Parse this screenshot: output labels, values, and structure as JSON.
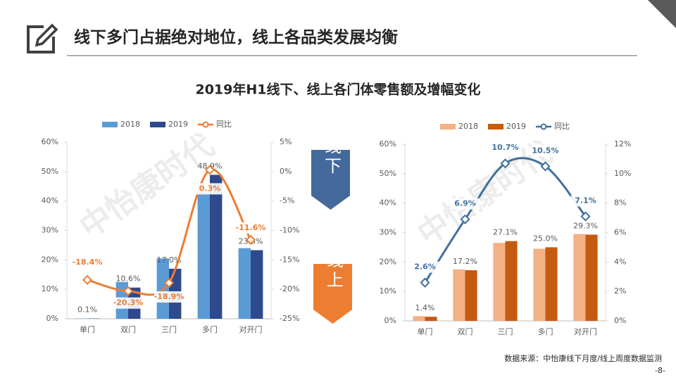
{
  "slide": {
    "title": "线下多门占据绝对地位，线上各品类发展均衡",
    "chart_title": "2019年H1线下、线上各门体零售额及增幅变化",
    "source": "数据来源：中怡康线下月度/线上周度数据监测",
    "page": "-8-"
  },
  "chart_data": [
    {
      "type": "bar",
      "tag": "线下",
      "watermark": "中怡康时代",
      "categories": [
        "单门",
        "双门",
        "三门",
        "多门",
        "对开门"
      ],
      "series": [
        {
          "name": "2018",
          "color": "#5b9bd5",
          "values": [
            0.1,
            12.5,
            20.5,
            43,
            24
          ]
        },
        {
          "name": "2019",
          "color": "#2e4a8c",
          "values": [
            0.1,
            10.6,
            17.0,
            48.9,
            23.3
          ],
          "value_labels": [
            "0.1%",
            "10.6%",
            "17.0%",
            "48.9%",
            "23.3%"
          ]
        },
        {
          "name": "同比",
          "type": "line",
          "axis": "y2",
          "color": "#ed7d31",
          "values": [
            -18.4,
            -20.3,
            -18.9,
            0.3,
            -11.6
          ],
          "value_labels": [
            "-18.4%",
            "-20.3%",
            "-18.9%",
            "0.3%",
            "-11.6%"
          ]
        }
      ],
      "ylim": [
        0,
        60
      ],
      "yticks": [
        {
          "value": 0,
          "label": "0%"
        },
        {
          "value": 10,
          "label": "10%"
        },
        {
          "value": 20,
          "label": "20%"
        },
        {
          "value": 30,
          "label": "30%"
        },
        {
          "value": 40,
          "label": "40%"
        },
        {
          "value": 50,
          "label": "50%"
        },
        {
          "value": 60,
          "label": "60%"
        }
      ],
      "y2lim": [
        -25,
        5
      ],
      "y2ticks": [
        {
          "value": -25,
          "label": "-25%"
        },
        {
          "value": -20,
          "label": "-20%"
        },
        {
          "value": -15,
          "label": "-15%"
        },
        {
          "value": -10,
          "label": "-10%"
        },
        {
          "value": -5,
          "label": "-5%"
        },
        {
          "value": 0,
          "label": "0%"
        },
        {
          "value": 5,
          "label": "5%"
        }
      ],
      "tag_color": "#44699b"
    },
    {
      "type": "bar",
      "tag": "线上",
      "watermark": "中怡康时代",
      "categories": [
        "单门",
        "双门",
        "三门",
        "多门",
        "对开门"
      ],
      "series": [
        {
          "name": "2018",
          "color": "#f4b183",
          "values": [
            1.6,
            17.5,
            26.5,
            24.5,
            29.5
          ]
        },
        {
          "name": "2019",
          "color": "#c55a11",
          "values": [
            1.4,
            17.2,
            27.1,
            25.0,
            29.3
          ],
          "value_labels": [
            "1.4%",
            "17.2%",
            "27.1%",
            "25.0%",
            "29.3%"
          ]
        },
        {
          "name": "同比",
          "type": "line",
          "axis": "y2",
          "color": "#41719c",
          "values": [
            2.6,
            6.9,
            10.7,
            10.5,
            7.1
          ],
          "value_labels": [
            "2.6%",
            "6.9%",
            "10.7%",
            "10.5%",
            "7.1%"
          ]
        }
      ],
      "ylim": [
        0,
        60
      ],
      "yticks": [
        {
          "value": 0,
          "label": "0%"
        },
        {
          "value": 10,
          "label": "10%"
        },
        {
          "value": 20,
          "label": "20%"
        },
        {
          "value": 30,
          "label": "30%"
        },
        {
          "value": 40,
          "label": "40%"
        },
        {
          "value": 50,
          "label": "50%"
        },
        {
          "value": 60,
          "label": "60%"
        }
      ],
      "y2lim": [
        0,
        12
      ],
      "y2ticks": [
        {
          "value": 0,
          "label": "0%"
        },
        {
          "value": 2,
          "label": "2%"
        },
        {
          "value": 4,
          "label": "4%"
        },
        {
          "value": 6,
          "label": "6%"
        },
        {
          "value": 8,
          "label": "8%"
        },
        {
          "value": 10,
          "label": "10%"
        },
        {
          "value": 12,
          "label": "12%"
        }
      ],
      "tag_color": "#ed7d31"
    }
  ]
}
